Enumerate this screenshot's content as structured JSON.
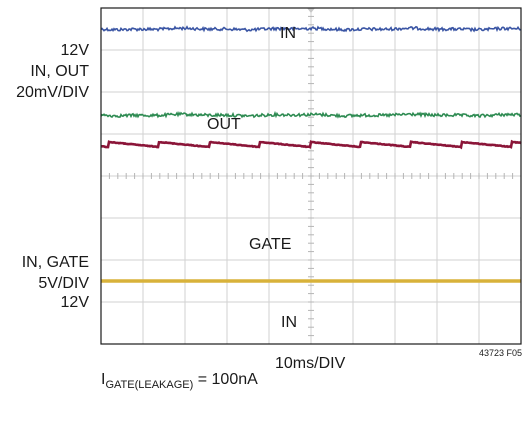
{
  "chart_data": {
    "type": "line",
    "title": "",
    "figure_id": "43723 F05",
    "timebase": "10ms/DIV",
    "scales": {
      "in_out": {
        "label_line1": "IN, OUT",
        "label_line2": "20mV/DIV",
        "level": "12V"
      },
      "in_gate": {
        "label_line1": "IN, GATE",
        "label_line2": "5V/DIV",
        "level": "12V"
      }
    },
    "grid": {
      "x_divisions": 10,
      "y_divisions": 8,
      "minor_ticks_per_div": 5
    },
    "caption": {
      "symbol": "I",
      "subscript": "GATE(LEAKAGE)",
      "value": "= 100nA"
    },
    "series": [
      {
        "name": "IN",
        "color": "#3a55a4",
        "level_div": 0.5,
        "noise_div": 0.035,
        "shape": "noise"
      },
      {
        "name": "OUT",
        "color": "#2e8b52",
        "level_div": 2.55,
        "noise_div": 0.035,
        "shape": "noise"
      },
      {
        "name": "GATE",
        "color": "#8b1538",
        "level_div": 3.25,
        "sawtooth_period_div": 1.2,
        "sawtooth_drop_div": 0.12,
        "shape": "sawtooth"
      },
      {
        "name": "IN",
        "color": "#d8b23a",
        "level_div": 6.5,
        "shape": "flat"
      }
    ],
    "trace_labels": [
      "IN",
      "OUT",
      "GATE",
      "IN"
    ]
  }
}
